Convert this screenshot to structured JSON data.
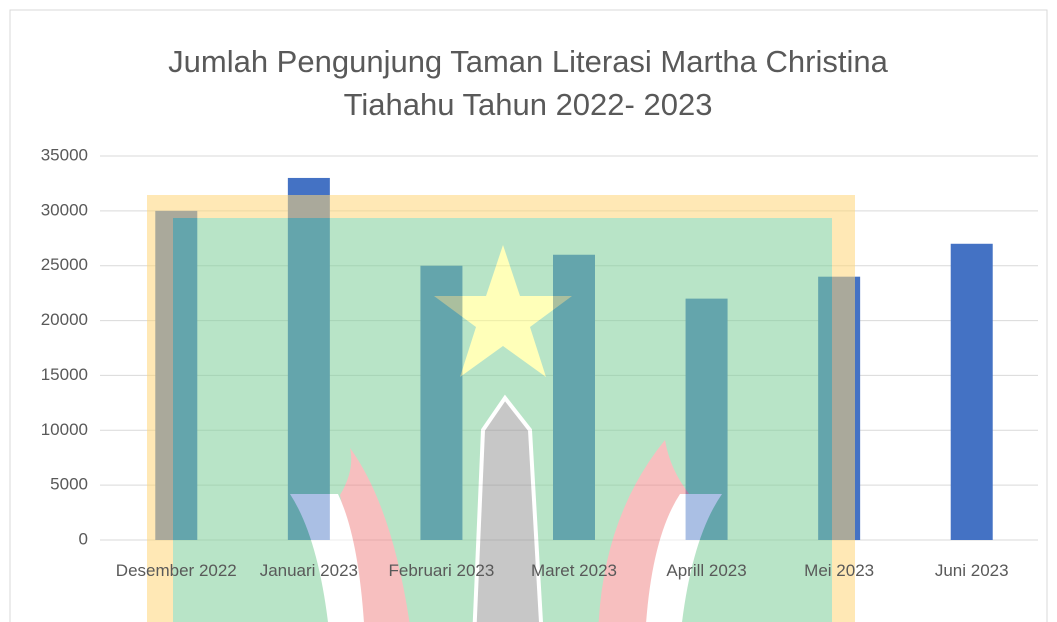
{
  "chart_data": {
    "type": "bar",
    "title": "Jumlah Pengunjung Taman Literasi Martha Christina Tiahahu Tahun 2022- 2023",
    "categories": [
      "Desember 2022",
      "Januari 2023",
      "Februari 2023",
      "Maret 2023",
      "Aprill 2023",
      "Mei 2023",
      "Juni 2023"
    ],
    "values": [
      30000,
      33000,
      25000,
      26000,
      22000,
      24000,
      27000
    ],
    "color": "#4472c4",
    "ylim": [
      0,
      35000
    ],
    "yticks": [
      0,
      5000,
      10000,
      15000,
      20000,
      25000,
      30000,
      35000
    ],
    "grid": true
  }
}
